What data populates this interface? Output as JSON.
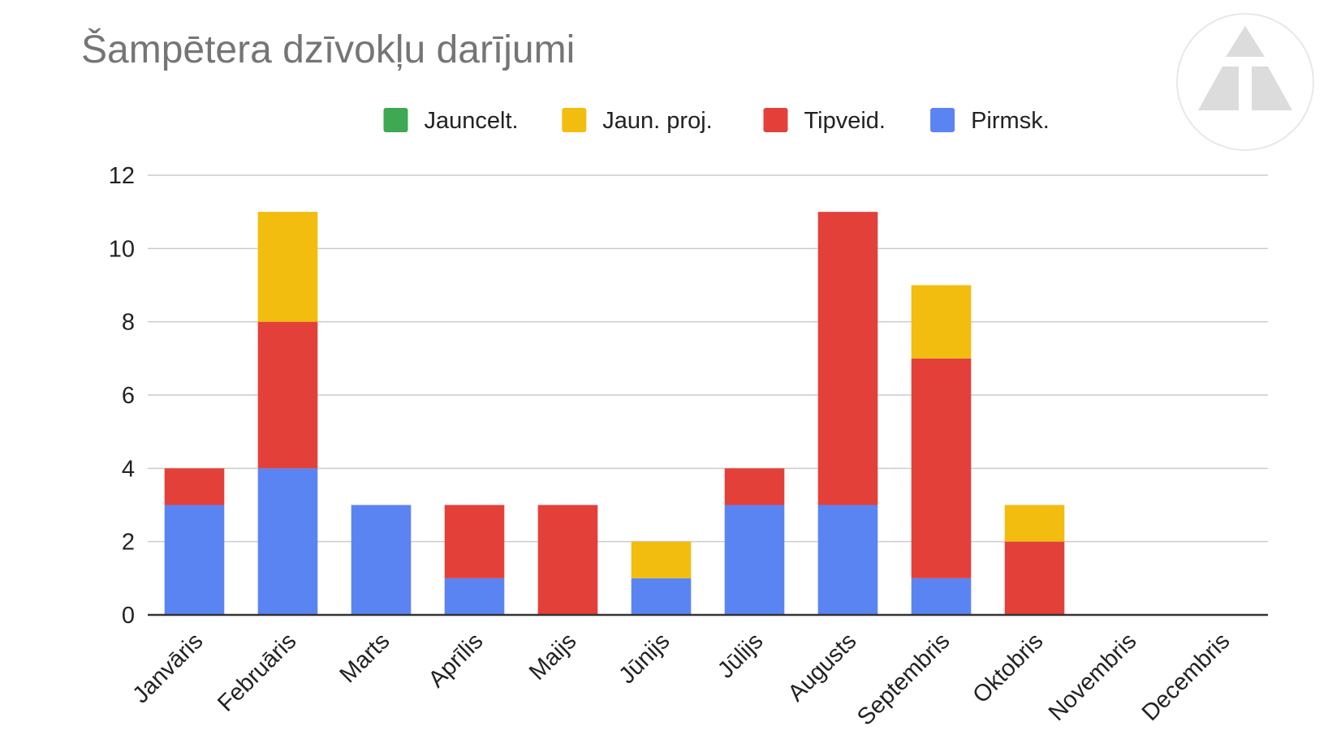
{
  "chart_data": {
    "type": "bar",
    "stacked": true,
    "title": "Šampētera dzīvokļu darījumi",
    "xlabel": "",
    "ylabel": "",
    "ylim": [
      0,
      12
    ],
    "yticks": [
      0,
      2,
      4,
      6,
      8,
      10,
      12
    ],
    "grid": true,
    "legend_position": "top",
    "categories": [
      "Janvāris",
      "Februāris",
      "Marts",
      "Aprīlis",
      "Maijs",
      "Jūnijs",
      "Jūlijs",
      "Augusts",
      "Septembris",
      "Oktobris",
      "Novembris",
      "Decembris"
    ],
    "series": [
      {
        "name": "Pirmsk.",
        "color": "#5b84f3",
        "values": [
          3,
          4,
          3,
          1,
          0,
          1,
          3,
          3,
          1,
          0,
          0,
          0
        ]
      },
      {
        "name": "Tipveid.",
        "color": "#e3403a",
        "values": [
          1,
          4,
          0,
          2,
          3,
          0,
          1,
          8,
          6,
          2,
          0,
          0
        ]
      },
      {
        "name": "Jaun. proj.",
        "color": "#f2bd0f",
        "values": [
          0,
          3,
          0,
          0,
          0,
          1,
          0,
          0,
          2,
          1,
          0,
          0
        ]
      },
      {
        "name": "Jauncelt.",
        "color": "#3ea852",
        "values": [
          0,
          0,
          0,
          0,
          0,
          0,
          0,
          0,
          0,
          0,
          0,
          0
        ]
      }
    ],
    "legend_order": [
      "Jauncelt.",
      "Jaun. proj.",
      "Tipveid.",
      "Pirmsk."
    ]
  },
  "watermark": {
    "icon": "triangle-logo-icon"
  }
}
